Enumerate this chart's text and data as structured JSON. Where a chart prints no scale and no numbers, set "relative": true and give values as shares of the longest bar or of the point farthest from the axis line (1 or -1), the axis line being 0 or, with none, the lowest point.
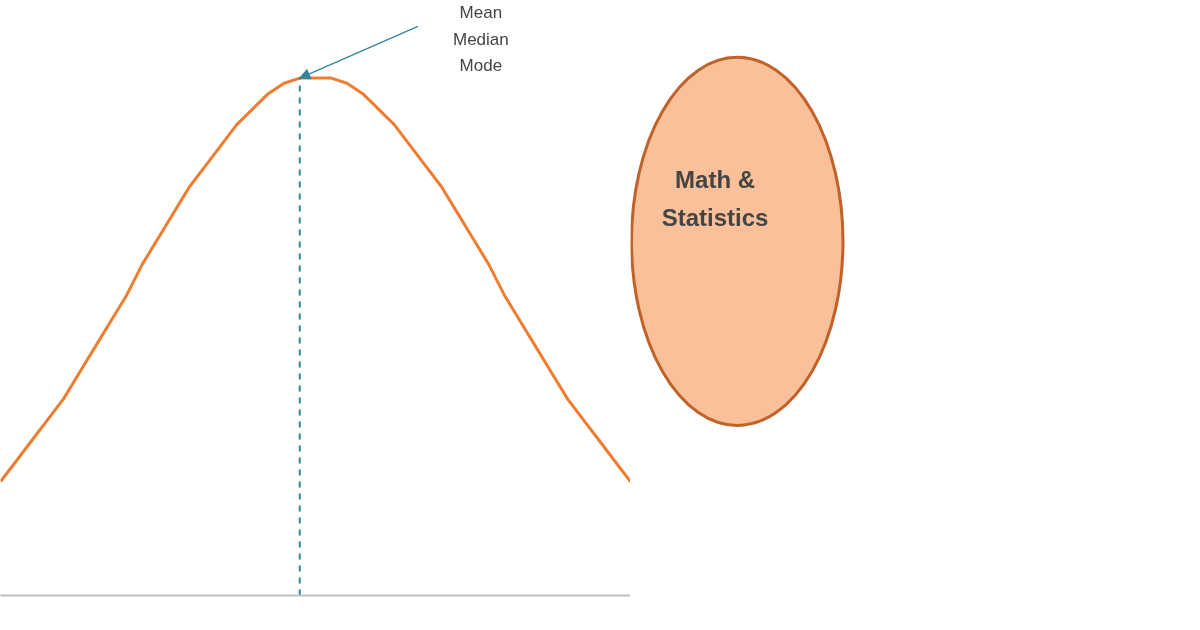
{
  "chart_data": {
    "type": "line",
    "relative": true,
    "grid": false,
    "marker": "none",
    "line_style": "solid",
    "categories": [
      null,
      null,
      null,
      null,
      null,
      null,
      null,
      null,
      null,
      null,
      null,
      null,
      null,
      null,
      null,
      null,
      null,
      null,
      null,
      null,
      null,
      null,
      null,
      null,
      null,
      null,
      null,
      null,
      null,
      null,
      null,
      null,
      null,
      null,
      null,
      null,
      null,
      null,
      null,
      null,
      null
    ],
    "series": [
      {
        "color": "#ed7d31",
        "values": [
          0.22,
          0.26,
          0.3,
          0.34,
          0.38,
          0.43,
          0.48,
          0.53,
          0.58,
          0.64,
          0.69,
          0.74,
          0.79,
          0.83,
          0.87,
          0.91,
          0.94,
          0.97,
          0.99,
          1.0,
          1.0,
          1.0,
          0.99,
          0.97,
          0.94,
          0.91,
          0.87,
          0.83,
          0.79,
          0.74,
          0.69,
          0.64,
          0.58,
          0.53,
          0.48,
          0.43,
          0.38,
          0.34,
          0.3,
          0.26,
          0.22
        ]
      }
    ],
    "annotations": [
      "Mean\nMedian\nMode",
      "Math & Statistics"
    ]
  }
}
